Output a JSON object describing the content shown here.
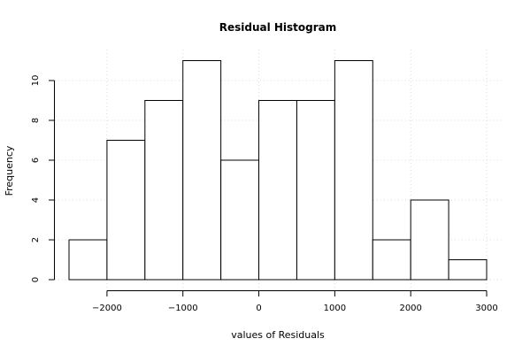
{
  "chart_data": {
    "type": "bar",
    "title": "Residual Histogram",
    "xlabel": "values of Residuals",
    "ylabel": "Frequency",
    "bins": [
      {
        "from": -2500,
        "to": -2000,
        "count": 2
      },
      {
        "from": -2000,
        "to": -1500,
        "count": 7
      },
      {
        "from": -1500,
        "to": -1000,
        "count": 9
      },
      {
        "from": -1000,
        "to": -500,
        "count": 11
      },
      {
        "from": -500,
        "to": 0,
        "count": 6
      },
      {
        "from": 0,
        "to": 500,
        "count": 9
      },
      {
        "from": 500,
        "to": 1000,
        "count": 9
      },
      {
        "from": 1000,
        "to": 1500,
        "count": 11
      },
      {
        "from": 1500,
        "to": 2000,
        "count": 2
      },
      {
        "from": 2000,
        "to": 2500,
        "count": 4
      },
      {
        "from": 2500,
        "to": 3000,
        "count": 1
      }
    ],
    "xlim": [
      -2500,
      3000
    ],
    "ylim": [
      0,
      11
    ],
    "xticks": [
      -2000,
      -1000,
      0,
      1000,
      2000,
      3000
    ],
    "xtick_labels": [
      "−2000",
      "−1000",
      "0",
      "1000",
      "2000",
      "3000"
    ],
    "yticks": [
      0,
      2,
      4,
      6,
      8,
      10
    ],
    "ytick_labels": [
      "0",
      "2",
      "4",
      "6",
      "8",
      "10"
    ],
    "grid": true
  }
}
